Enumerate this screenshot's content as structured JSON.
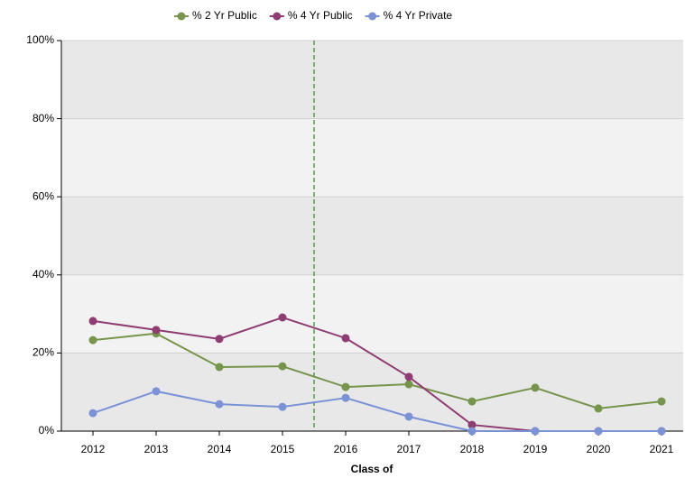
{
  "chart_data": {
    "type": "line",
    "xlabel": "Class of",
    "categories": [
      "2012",
      "2013",
      "2014",
      "2015",
      "2016",
      "2017",
      "2018",
      "2019",
      "2020",
      "2021"
    ],
    "series": [
      {
        "name": "% 2 Yr Public",
        "color": "#76944c",
        "values": [
          23.3,
          25,
          16.4,
          16.6,
          11.3,
          12,
          7.6,
          11.1,
          5.8,
          7.6
        ]
      },
      {
        "name": "% 4 Yr Public",
        "color": "#8e3c71",
        "values": [
          28.2,
          25.9,
          23.6,
          29.1,
          23.8,
          13.9,
          1.6,
          0,
          0,
          0
        ]
      },
      {
        "name": "% 4 Yr Private",
        "color": "#7b93d6",
        "values": [
          4.6,
          10.2,
          6.9,
          6.2,
          8.5,
          3.7,
          0,
          0,
          0,
          0
        ]
      }
    ],
    "ylim": [
      0,
      100
    ],
    "yticks": [
      {
        "value": 0,
        "label": "0%"
      },
      {
        "value": 20,
        "label": "20%"
      },
      {
        "value": 40,
        "label": "40%"
      },
      {
        "value": 60,
        "label": "60%"
      },
      {
        "value": 80,
        "label": "80%"
      },
      {
        "value": 100,
        "label": "100%"
      }
    ],
    "grid": true,
    "legend": "top"
  }
}
